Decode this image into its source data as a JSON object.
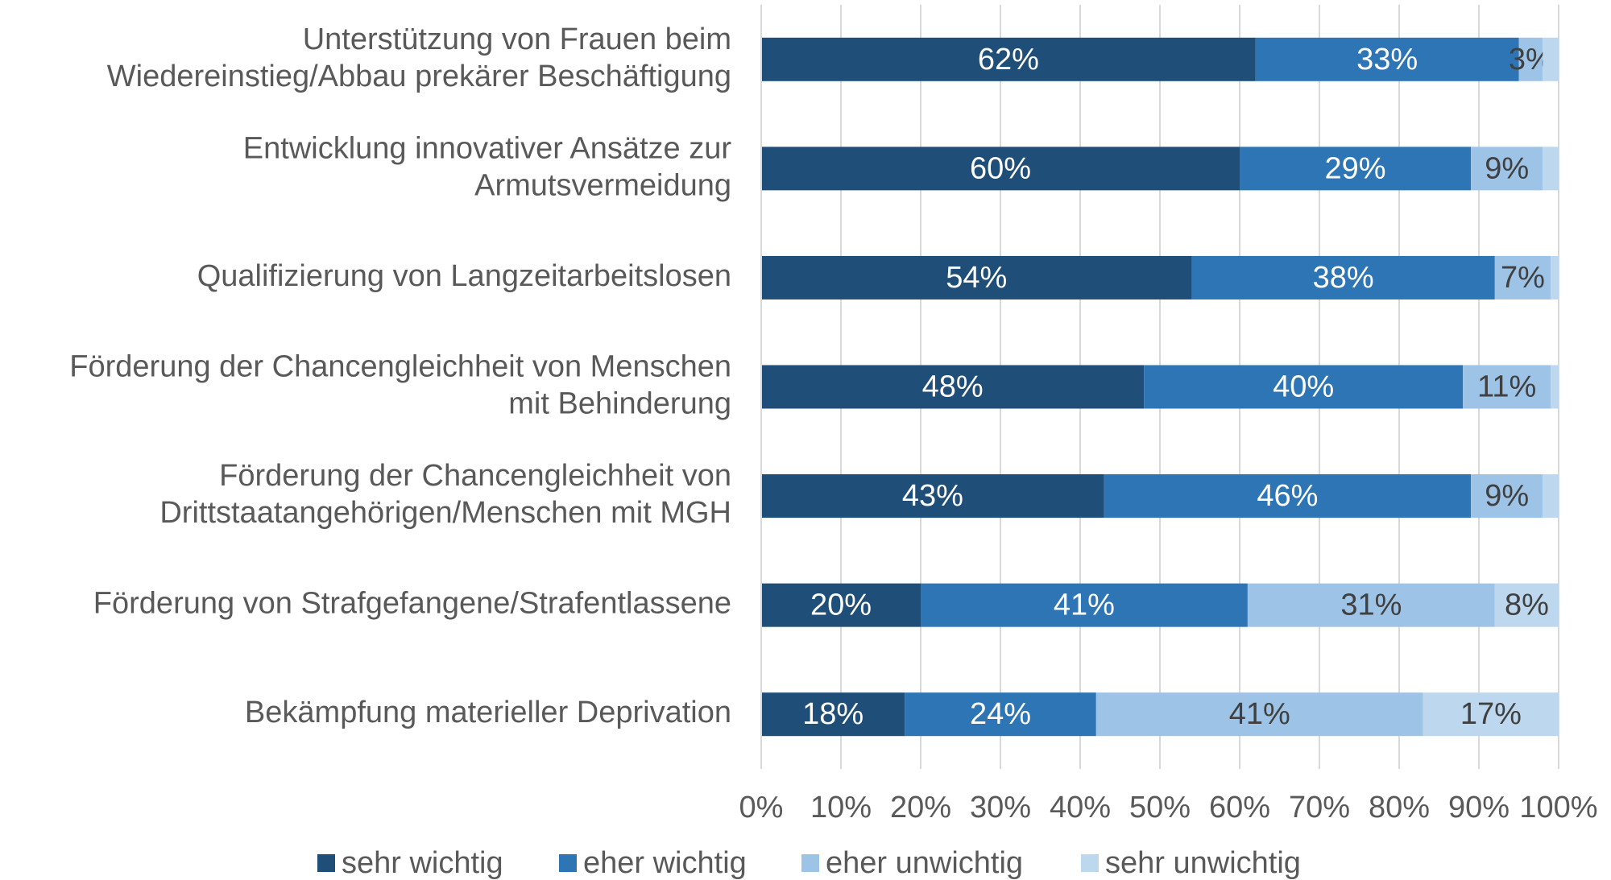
{
  "chart_data": {
    "type": "stacked-bar-horizontal",
    "categories": [
      [
        "Unterstützung von Frauen beim",
        "Wiedereinstieg/Abbau prekärer Beschäftigung"
      ],
      [
        "Entwicklung innovativer Ansätze zur",
        "Armutsvermeidung"
      ],
      [
        "Qualifizierung von Langzeitarbeitslosen"
      ],
      [
        "Förderung der Chancengleichheit von Menschen",
        "mit Behinderung"
      ],
      [
        "Förderung der Chancengleichheit von",
        "Drittstaatangehörigen/Menschen mit MGH"
      ],
      [
        "Förderung von  Strafgefangene/Strafentlassene"
      ],
      [
        "Bekämpfung materieller Deprivation"
      ]
    ],
    "series": [
      {
        "name": "sehr wichtig",
        "color": "#1f4e79",
        "values": [
          62,
          60,
          54,
          48,
          43,
          20,
          18
        ],
        "value_labels": [
          "62%",
          "60%",
          "54%",
          "48%",
          "43%",
          "20%",
          "18%"
        ]
      },
      {
        "name": "eher wichtig",
        "color": "#2e75b6",
        "values": [
          33,
          29,
          38,
          40,
          46,
          41,
          24
        ],
        "value_labels": [
          "33%",
          "29%",
          "38%",
          "40%",
          "46%",
          "41%",
          "24%"
        ]
      },
      {
        "name": "eher unwichtig",
        "color": "#9dc3e6",
        "values": [
          3,
          9,
          7,
          11,
          9,
          31,
          41
        ],
        "value_labels": [
          "3%",
          "9%",
          "7%",
          "11%",
          "9%",
          "31%",
          "41%"
        ]
      },
      {
        "name": "sehr unwichtig",
        "color": "#bdd7ee",
        "values": [
          2,
          2,
          1,
          1,
          2,
          8,
          17
        ],
        "value_labels": [
          null,
          null,
          null,
          null,
          null,
          "8%",
          "17%"
        ]
      }
    ],
    "xlim": [
      0,
      100
    ],
    "xticks": [
      {
        "value": 0,
        "label": "0%"
      },
      {
        "value": 10,
        "label": "10%"
      },
      {
        "value": 20,
        "label": "20%"
      },
      {
        "value": 30,
        "label": "30%"
      },
      {
        "value": 40,
        "label": "40%"
      },
      {
        "value": 50,
        "label": "50%"
      },
      {
        "value": 60,
        "label": "60%"
      },
      {
        "value": 70,
        "label": "70%"
      },
      {
        "value": 80,
        "label": "80%"
      },
      {
        "value": 90,
        "label": "90%"
      },
      {
        "value": 100,
        "label": "100%"
      }
    ],
    "grid": true,
    "legend": "bottom"
  }
}
